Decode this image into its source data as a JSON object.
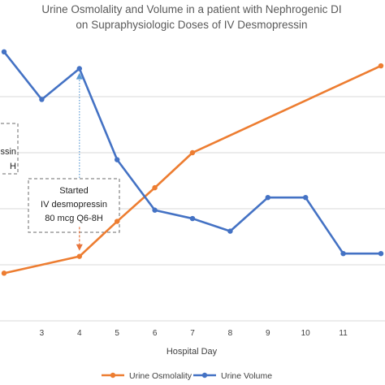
{
  "chart_data": {
    "type": "line",
    "title_lines": [
      "Urine Osmolality and Volume in a patient with Nephrogenic DI",
      "on Supraphysiologic Doses of IV Desmopressin"
    ],
    "xlabel": "Hospital Day",
    "x": [
      2,
      3,
      4,
      5,
      6,
      7,
      8,
      9,
      10,
      11,
      12
    ],
    "x_tick_labels": [
      "3",
      "4",
      "5",
      "6",
      "7",
      "8",
      "9",
      "10",
      "11"
    ],
    "x_tick_values": [
      3,
      4,
      5,
      6,
      7,
      8,
      9,
      10,
      11
    ],
    "y_range_relative": [
      0,
      100
    ],
    "grid": "horizontal",
    "legend_position": "bottom",
    "series": [
      {
        "name": "Urine Osmolality",
        "color": "#ED7D31",
        "x": [
          2.0,
          4.0,
          5.0,
          6.0,
          7.0,
          12.0
        ],
        "values": [
          17.0,
          23.0,
          35.5,
          47.5,
          60.0,
          91.0
        ]
      },
      {
        "name": "Urine Volume",
        "color": "#4472C4",
        "x": [
          2.0,
          3.0,
          4.0,
          5.0,
          6.0,
          7.0,
          8.0,
          9.0,
          10.0,
          11.0,
          12.0
        ],
        "values": [
          96.0,
          79.0,
          90.0,
          57.5,
          39.5,
          36.5,
          32.0,
          44.0,
          44.0,
          24.0,
          24.0
        ]
      }
    ],
    "gridlines_y": [
      0,
      20,
      40,
      60,
      80
    ],
    "annotations": [
      {
        "id": "started",
        "lines": [
          "Started",
          "IV desmopressin",
          "80 mcg Q6-8H"
        ],
        "arrow_color": "#E8743B",
        "arrow_x": 4.0,
        "arrow_y_from": 33.5,
        "arrow_y_to": 25.0,
        "dotted_color": "#5B9BD5",
        "dotted_y_from": 49.0,
        "dotted_y_to": 88.5
      },
      {
        "id": "partial",
        "lines": [
          "ssin",
          "H"
        ]
      }
    ]
  }
}
